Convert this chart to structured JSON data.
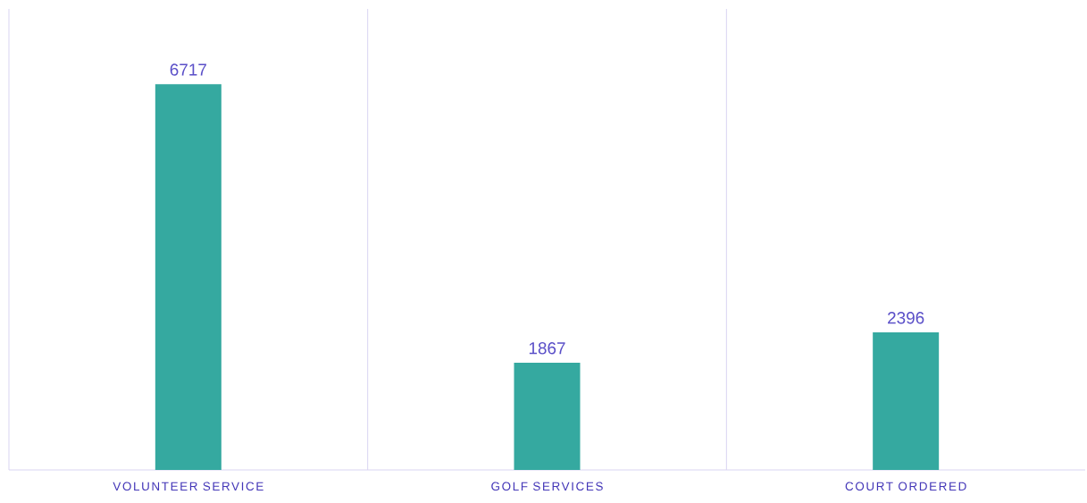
{
  "chart_data": {
    "type": "bar",
    "categories": [
      "VOLUNTEER SERVICE",
      "GOLF SERVICES",
      "COURT ORDERED"
    ],
    "values": [
      6717,
      1867,
      2396
    ],
    "color": "#35a9a0",
    "data_labels": true,
    "grid": "x"
  }
}
